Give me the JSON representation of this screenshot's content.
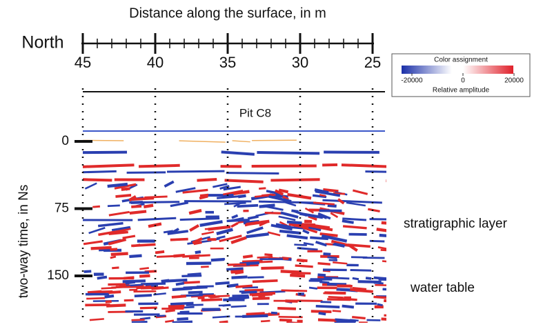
{
  "axis_top": {
    "title": "Distance along the surface, in m",
    "direction": "North",
    "ticks": [
      45,
      40,
      35,
      30,
      25
    ]
  },
  "axis_left": {
    "title": "two-way time, in Ns",
    "ticks": [
      0,
      75,
      150
    ]
  },
  "annotations": {
    "pit": "Pit C8",
    "layer": "stratigraphic layer",
    "water": "water table"
  },
  "colorbar": {
    "title": "Color assignment",
    "label": "Relative amplitude",
    "ticks": [
      -20000,
      0,
      20000
    ]
  }
}
